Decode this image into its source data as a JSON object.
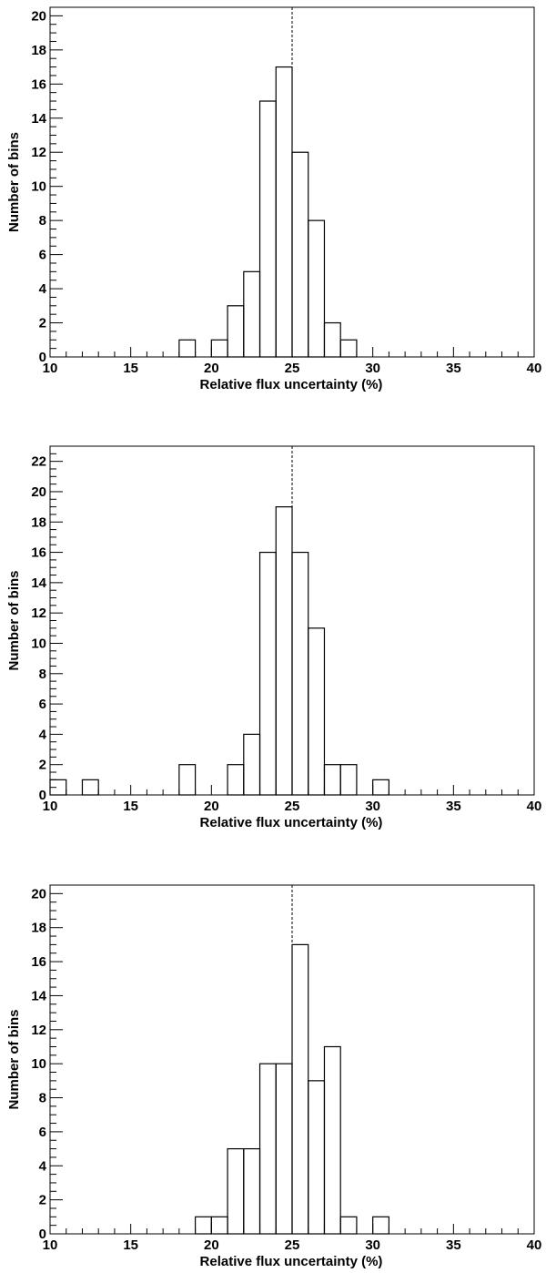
{
  "chart_data": [
    {
      "type": "histogram",
      "xlabel": "Relative flux uncertainty (%)",
      "ylabel": "Number of bins",
      "xlim": [
        10,
        40
      ],
      "ylim": [
        0,
        20.5
      ],
      "bin_width": 1,
      "x_ticks": [
        10,
        15,
        20,
        25,
        30,
        35,
        40
      ],
      "y_ticks": [
        0,
        2,
        4,
        6,
        8,
        10,
        12,
        14,
        16,
        18,
        20
      ],
      "reference_line": 25,
      "bins": [
        {
          "x": 18,
          "count": 1
        },
        {
          "x": 20,
          "count": 1
        },
        {
          "x": 21,
          "count": 3
        },
        {
          "x": 22,
          "count": 5
        },
        {
          "x": 23,
          "count": 15
        },
        {
          "x": 24,
          "count": 17
        },
        {
          "x": 25,
          "count": 12
        },
        {
          "x": 26,
          "count": 8
        },
        {
          "x": 27,
          "count": 2
        },
        {
          "x": 28,
          "count": 1
        }
      ]
    },
    {
      "type": "histogram",
      "xlabel": "Relative flux uncertainty (%)",
      "ylabel": "Number of bins",
      "xlim": [
        10,
        40
      ],
      "ylim": [
        0,
        23
      ],
      "bin_width": 1,
      "x_ticks": [
        10,
        15,
        20,
        25,
        30,
        35,
        40
      ],
      "y_ticks": [
        0,
        2,
        4,
        6,
        8,
        10,
        12,
        14,
        16,
        18,
        20,
        22
      ],
      "reference_line": 25,
      "bins": [
        {
          "x": 10,
          "count": 1
        },
        {
          "x": 12,
          "count": 1
        },
        {
          "x": 18,
          "count": 2
        },
        {
          "x": 21,
          "count": 2
        },
        {
          "x": 22,
          "count": 4
        },
        {
          "x": 23,
          "count": 16
        },
        {
          "x": 24,
          "count": 19
        },
        {
          "x": 25,
          "count": 16
        },
        {
          "x": 26,
          "count": 11
        },
        {
          "x": 27,
          "count": 2
        },
        {
          "x": 28,
          "count": 2
        },
        {
          "x": 30,
          "count": 1
        }
      ]
    },
    {
      "type": "histogram",
      "xlabel": "Relative flux uncertainty (%)",
      "ylabel": "Number of bins",
      "xlim": [
        10,
        40
      ],
      "ylim": [
        0,
        20.5
      ],
      "bin_width": 1,
      "x_ticks": [
        10,
        15,
        20,
        25,
        30,
        35,
        40
      ],
      "y_ticks": [
        0,
        2,
        4,
        6,
        8,
        10,
        12,
        14,
        16,
        18,
        20
      ],
      "reference_line": 25,
      "bins": [
        {
          "x": 19,
          "count": 1
        },
        {
          "x": 20,
          "count": 1
        },
        {
          "x": 21,
          "count": 5
        },
        {
          "x": 22,
          "count": 5
        },
        {
          "x": 23,
          "count": 10
        },
        {
          "x": 24,
          "count": 10
        },
        {
          "x": 25,
          "count": 17
        },
        {
          "x": 26,
          "count": 9
        },
        {
          "x": 27,
          "count": 11
        },
        {
          "x": 28,
          "count": 1
        },
        {
          "x": 30,
          "count": 1
        }
      ]
    }
  ]
}
